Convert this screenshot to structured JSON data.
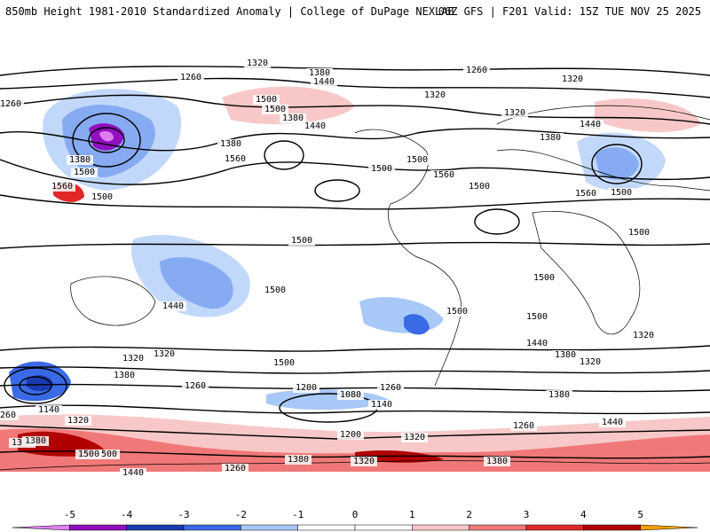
{
  "header": {
    "left_title": "850mb Height 1981-2010 Standardized Anomaly | College of DuPage NEXLAB",
    "right_title": "06Z GFS | F201 Valid: 15Z TUE NOV 25 2025"
  },
  "colorbar": {
    "ticks": [
      "-5",
      "-4",
      "-3",
      "-2",
      "-1",
      "0",
      "1",
      "2",
      "3",
      "4",
      "5"
    ],
    "colors": [
      "#e080f0",
      "#9010c0",
      "#1a3ab0",
      "#3a6ae6",
      "#a8c8f8",
      "#ffffff",
      "#ffffff",
      "#f8c8c8",
      "#f07878",
      "#e02828",
      "#b00000",
      "#f0a000"
    ]
  },
  "contour_labels": [
    {
      "text": "1320"
    },
    {
      "text": "1380"
    },
    {
      "text": "1260"
    },
    {
      "text": "1440"
    },
    {
      "text": "1500"
    },
    {
      "text": "1320"
    },
    {
      "text": "1260"
    },
    {
      "text": "1320"
    },
    {
      "text": "1260"
    },
    {
      "text": "1380"
    },
    {
      "text": "1440"
    },
    {
      "text": "1320"
    },
    {
      "text": "1380"
    },
    {
      "text": "1500"
    },
    {
      "text": "1440"
    },
    {
      "text": "1380"
    },
    {
      "text": "1500"
    },
    {
      "text": "1500"
    },
    {
      "text": "1560"
    },
    {
      "text": "1560"
    },
    {
      "text": "1560"
    },
    {
      "text": "1500"
    },
    {
      "text": "1500"
    },
    {
      "text": "1500"
    },
    {
      "text": "1500"
    },
    {
      "text": "1440"
    },
    {
      "text": "1380"
    },
    {
      "text": "1320"
    },
    {
      "text": "1260"
    },
    {
      "text": "1200"
    },
    {
      "text": "1080"
    },
    {
      "text": "1140"
    },
    {
      "text": "1260"
    },
    {
      "text": "1320"
    },
    {
      "text": "1380"
    },
    {
      "text": "1500"
    },
    {
      "text": "1440"
    },
    {
      "text": "1380"
    },
    {
      "text": "1320"
    },
    {
      "text": "1260"
    },
    {
      "text": "1380"
    },
    {
      "text": "1500"
    },
    {
      "text": "1140"
    },
    {
      "text": "1260"
    },
    {
      "text": "1320"
    },
    {
      "text": "1380"
    },
    {
      "text": "1440"
    },
    {
      "text": "1500"
    },
    {
      "text": "1500"
    },
    {
      "text": "1200"
    },
    {
      "text": "1260"
    },
    {
      "text": "1320"
    },
    {
      "text": "1380"
    },
    {
      "text": "1320"
    },
    {
      "text": "1440"
    },
    {
      "text": "1560"
    },
    {
      "text": "1500"
    },
    {
      "text": "1500"
    },
    {
      "text": "1380"
    },
    {
      "text": "1440"
    },
    {
      "text": "1500"
    },
    {
      "text": "1320"
    },
    {
      "text": "1500"
    },
    {
      "text": "1500"
    },
    {
      "text": "1380"
    }
  ]
}
